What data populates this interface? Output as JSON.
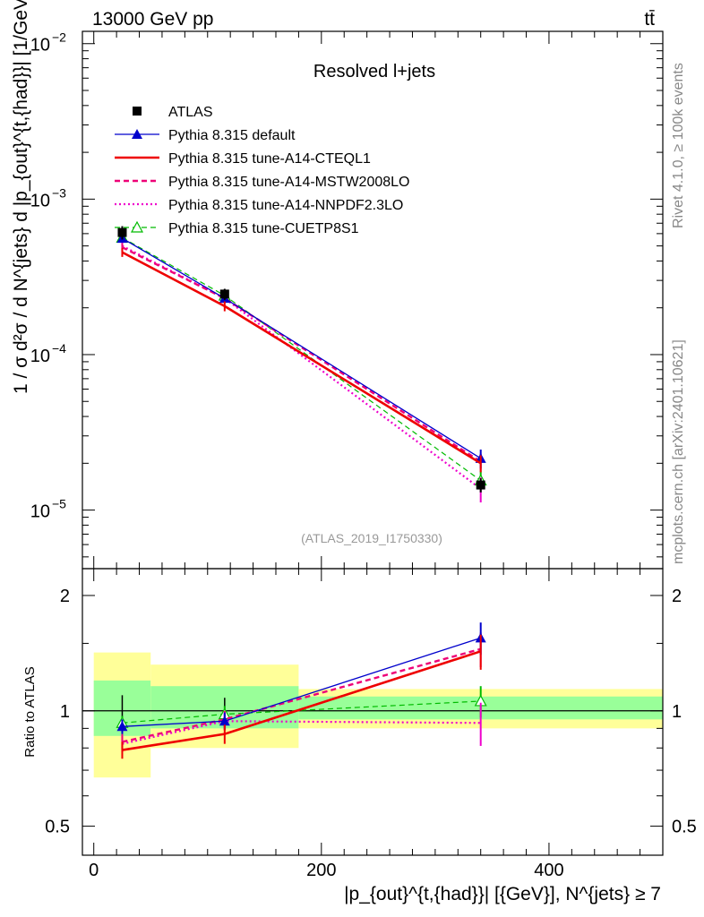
{
  "header": {
    "left": "13000 GeV pp",
    "right": "tt̄"
  },
  "side_labels": {
    "rivet": "Rivet 4.1.0, ≥ 100k events",
    "mcplots": "mcplots.cern.ch [arXiv:2401.10621]"
  },
  "colors": {
    "atlas": "#000000",
    "default": "#0000cc",
    "cteql1": "#ee0000",
    "mstw": "#ee0077",
    "nnpdf": "#ee00cc",
    "cuetp8s1": "#00bb00",
    "band_inner": "#99ff99",
    "band_outer": "#ffff99"
  },
  "chart_data": [
    {
      "type": "line",
      "panel": "main",
      "title": "Resolved l+jets",
      "analysis_id": "(ATLAS_2019_I1750330)",
      "ylabel": "1 / σ d²σ / d N^{jets} d |p_{out}^{t,{had}}| [1/GeV]",
      "yscale": "log",
      "ylim": [
        4.2e-06,
        0.012
      ],
      "xlim": [
        -10,
        500
      ],
      "y_ticks": [
        {
          "value": 1e-05,
          "label_base": "10",
          "label_exp": "−5"
        },
        {
          "value": 0.0001,
          "label_base": "10",
          "label_exp": "−4"
        },
        {
          "value": 0.001,
          "label_base": "10",
          "label_exp": "−3"
        },
        {
          "value": 0.01,
          "label_base": "10",
          "label_exp": "−2"
        }
      ],
      "legend_position": "top-left",
      "x": [
        25,
        115,
        340
      ],
      "series": [
        {
          "name": "ATLAS",
          "key": "atlas",
          "style": "data",
          "values": [
            0.00061,
            0.000245,
            1.45e-05
          ],
          "errors": [
            6e-05,
            2e-05,
            1.5e-06
          ]
        },
        {
          "name": "Pythia 8.315 default",
          "key": "default",
          "style": "solid-triangle",
          "values": [
            0.00056,
            0.00023,
            2.15e-05
          ],
          "errors": [
            3e-05,
            1.5e-05,
            3e-06
          ]
        },
        {
          "name": "Pythia 8.315 tune-A14-CTEQL1",
          "key": "cteql1",
          "style": "solid-thick",
          "values": [
            0.000455,
            0.000205,
            2e-05
          ],
          "errors": [
            3e-05,
            1.5e-05,
            2.5e-06
          ]
        },
        {
          "name": "Pythia 8.315 tune-A14-MSTW2008LO",
          "key": "mstw",
          "style": "dashed",
          "values": [
            0.00049,
            0.00023,
            2.05e-05
          ],
          "errors": [
            3e-05,
            1.5e-05,
            2.5e-06
          ]
        },
        {
          "name": "Pythia 8.315 tune-A14-NNPDF2.3LO",
          "key": "nnpdf",
          "style": "dotted",
          "values": [
            0.0005,
            0.00023,
            1.37e-05
          ],
          "errors": [
            3e-05,
            1.5e-05,
            2.5e-06
          ]
        },
        {
          "name": "Pythia 8.315 tune-CUETP8S1",
          "key": "cuetp8s1",
          "style": "dashed-open-triangle",
          "values": [
            0.000565,
            0.00024,
            1.55e-05
          ],
          "errors": [
            3e-05,
            1.5e-05,
            2.5e-06
          ]
        }
      ]
    },
    {
      "type": "line",
      "panel": "ratio",
      "ylabel": "Ratio to ATLAS",
      "xlabel": "|p_{out}^{t,{had}}| [{GeV}], N^{jets} ≥ 7",
      "yscale": "log",
      "ylim": [
        0.42,
        2.35
      ],
      "xlim": [
        -10,
        500
      ],
      "x_ticks": [
        0,
        200,
        400
      ],
      "y_ticks": [
        0.5,
        1,
        2
      ],
      "bins": [
        {
          "x_low": 0,
          "x_high": 50,
          "inner": [
            0.86,
            1.2
          ],
          "outer": [
            0.67,
            1.42
          ]
        },
        {
          "x_low": 50,
          "x_high": 180,
          "inner": [
            0.9,
            1.16
          ],
          "outer": [
            0.8,
            1.32
          ]
        },
        {
          "x_low": 180,
          "x_high": 500,
          "inner": [
            0.95,
            1.09
          ],
          "outer": [
            0.9,
            1.14
          ]
        }
      ],
      "x": [
        25,
        115,
        340
      ],
      "series": [
        {
          "name": "Pythia 8.315 default",
          "key": "default",
          "values": [
            0.91,
            0.94,
            1.55
          ],
          "errors": [
            0.04,
            0.05,
            0.15
          ]
        },
        {
          "name": "Pythia 8.315 tune-A14-CTEQL1",
          "key": "cteql1",
          "values": [
            0.79,
            0.87,
            1.43
          ],
          "errors": [
            0.04,
            0.05,
            0.15
          ]
        },
        {
          "name": "Pythia 8.315 tune-A14-MSTW2008LO",
          "key": "mstw",
          "values": [
            0.83,
            0.95,
            1.45
          ],
          "errors": [
            0.04,
            0.05,
            0.15
          ]
        },
        {
          "name": "Pythia 8.315 tune-A14-NNPDF2.3LO",
          "key": "nnpdf",
          "values": [
            0.82,
            0.94,
            0.93
          ],
          "errors": [
            0.04,
            0.05,
            0.12
          ]
        },
        {
          "name": "Pythia 8.315 tune-CUETP8S1",
          "key": "cuetp8s1",
          "values": [
            0.93,
            0.98,
            1.06
          ],
          "errors": [
            0.04,
            0.05,
            0.1
          ]
        }
      ]
    }
  ]
}
